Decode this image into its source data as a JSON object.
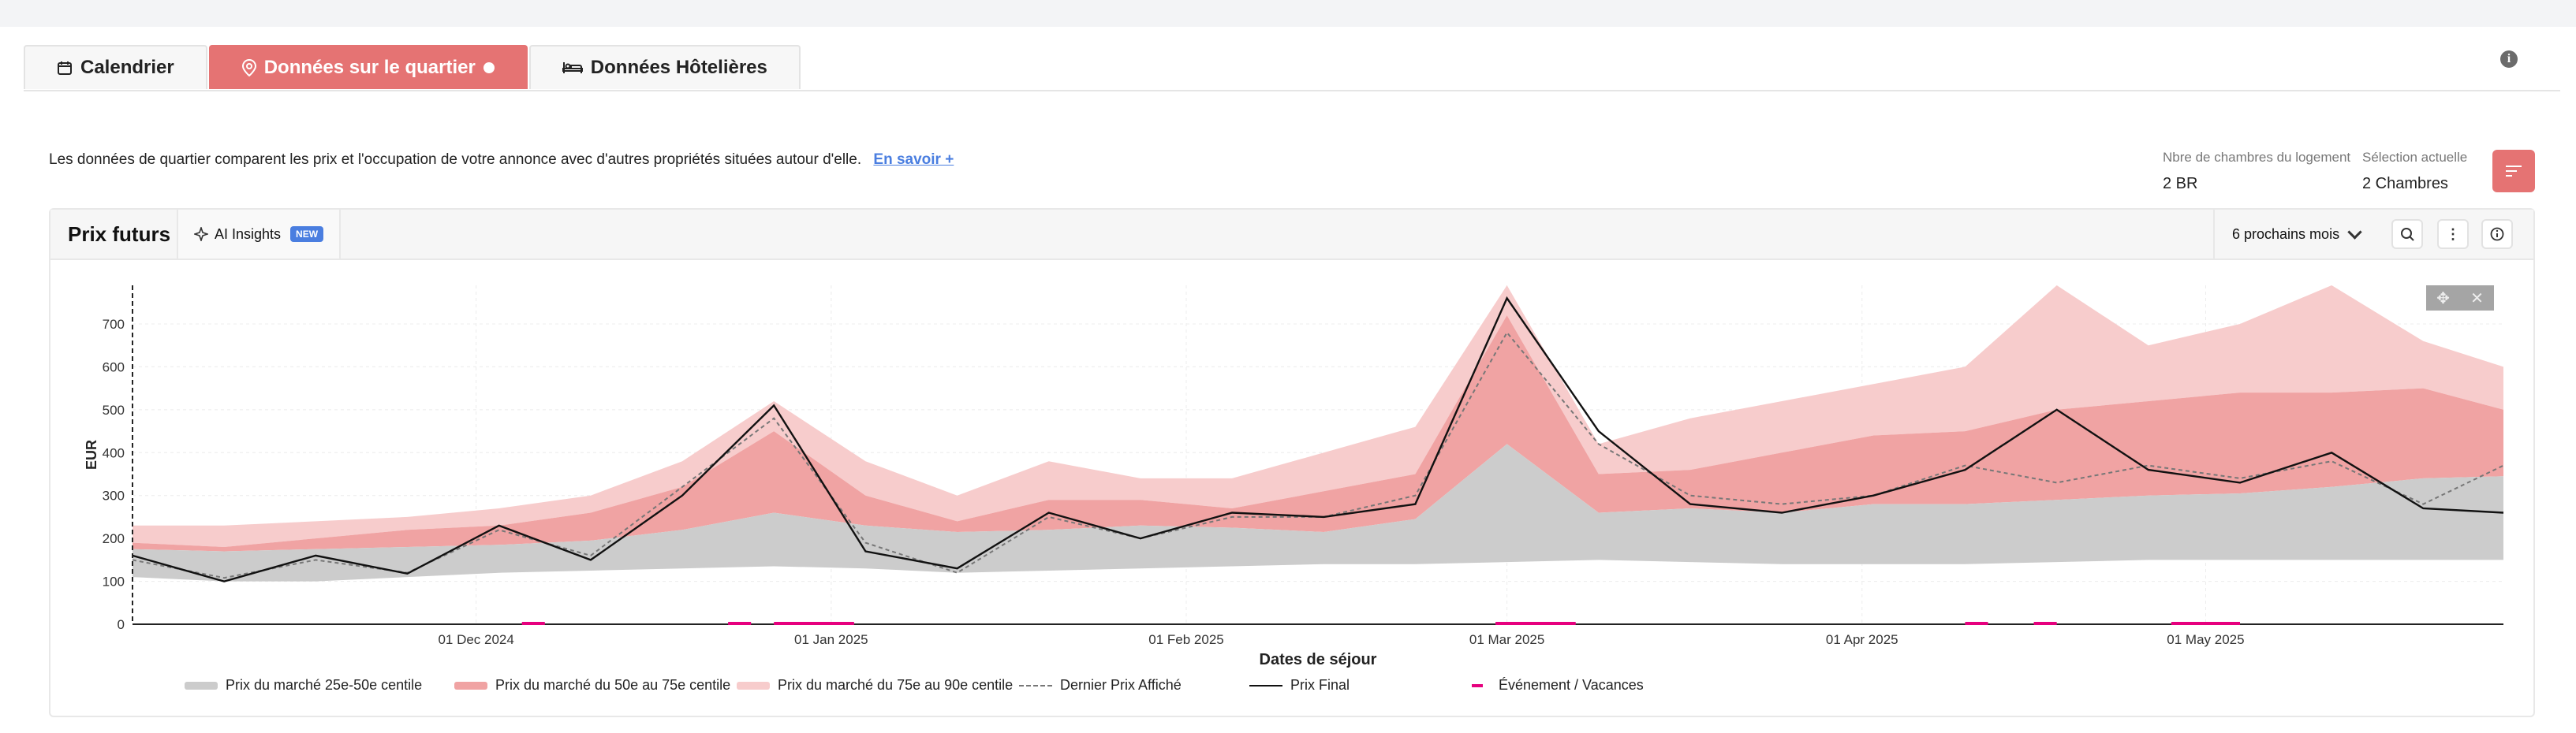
{
  "tabs": [
    {
      "label": "Calendrier",
      "icon": "calendar-icon"
    },
    {
      "label": "Données sur le quartier",
      "icon": "location-pin-icon"
    },
    {
      "label": "Données Hôtelières",
      "icon": "bed-icon"
    }
  ],
  "description": "Les données de quartier comparent les prix et l'occupation de votre annonce avec d'autres propriétés situées autour d'elle.",
  "learn_more": "En savoir +",
  "room_count": {
    "label": "Nbre de chambres du logement",
    "value": "2 BR"
  },
  "selection": {
    "label": "Sélection actuelle",
    "value": "2 Chambres"
  },
  "card": {
    "title": "Prix futurs",
    "ai_label": "AI Insights",
    "ai_badge": "NEW",
    "period": "6 prochains mois"
  },
  "colors": {
    "accent": "#e57373",
    "p25_50": "#cccccc",
    "p50_75": "#f0a3a3",
    "p75_90": "#f7cccc",
    "event": "#e6007e"
  },
  "chart_data": {
    "type": "area",
    "xlabel": "Dates de séjour",
    "ylabel": "EUR",
    "ylim": [
      0,
      790
    ],
    "yticks": [
      "0",
      "100",
      "200",
      "300",
      "400",
      "500",
      "600",
      "700"
    ],
    "x_start": "2024-11-01",
    "x_end": "2025-05-27",
    "xtick_labels": [
      {
        "date": "2024-12-01",
        "label": "01 Dec 2024"
      },
      {
        "date": "2025-01-01",
        "label": "01 Jan 2025"
      },
      {
        "date": "2025-02-01",
        "label": "01 Feb 2025"
      },
      {
        "date": "2025-03-01",
        "label": "01 Mar 2025"
      },
      {
        "date": "2025-04-01",
        "label": "01 Apr 2025"
      },
      {
        "date": "2025-05-01",
        "label": "01 May 2025"
      }
    ],
    "dates": [
      "2024-11-01",
      "2024-11-09",
      "2024-11-17",
      "2024-11-25",
      "2024-12-03",
      "2024-12-11",
      "2024-12-19",
      "2024-12-27",
      "2025-01-04",
      "2025-01-12",
      "2025-01-20",
      "2025-01-28",
      "2025-02-05",
      "2025-02-13",
      "2025-02-21",
      "2025-03-01",
      "2025-03-09",
      "2025-03-17",
      "2025-03-25",
      "2025-04-02",
      "2025-04-10",
      "2025-04-18",
      "2025-04-26",
      "2025-05-04",
      "2025-05-12",
      "2025-05-20",
      "2025-05-27"
    ],
    "series": [
      {
        "name": "Prix du marché 25e-50e centile",
        "low": [
          110,
          100,
          100,
          110,
          120,
          125,
          130,
          135,
          130,
          120,
          125,
          130,
          135,
          140,
          140,
          145,
          150,
          145,
          140,
          140,
          140,
          145,
          150,
          150,
          150,
          150,
          150
        ],
        "high": [
          175,
          170,
          175,
          180,
          185,
          195,
          220,
          260,
          230,
          215,
          220,
          230,
          225,
          215,
          245,
          420,
          260,
          270,
          260,
          280,
          280,
          290,
          300,
          305,
          320,
          340,
          345
        ]
      },
      {
        "name": "Prix du marché du 50e au 75e centile",
        "low": [
          175,
          170,
          175,
          180,
          185,
          195,
          220,
          260,
          230,
          215,
          220,
          230,
          225,
          215,
          245,
          420,
          260,
          270,
          260,
          280,
          280,
          290,
          300,
          305,
          320,
          340,
          345
        ],
        "high": [
          190,
          180,
          200,
          220,
          230,
          260,
          320,
          450,
          300,
          240,
          290,
          290,
          270,
          310,
          350,
          720,
          350,
          360,
          400,
          440,
          450,
          500,
          520,
          540,
          540,
          550,
          500
        ]
      },
      {
        "name": "Prix du marché du 75e au 90e centile",
        "low": [
          190,
          180,
          200,
          220,
          230,
          260,
          320,
          450,
          300,
          240,
          290,
          290,
          270,
          310,
          350,
          720,
          350,
          360,
          400,
          440,
          450,
          500,
          520,
          540,
          540,
          550,
          500
        ],
        "high": [
          230,
          230,
          240,
          250,
          270,
          300,
          380,
          520,
          380,
          300,
          380,
          340,
          340,
          400,
          460,
          790,
          420,
          480,
          520,
          560,
          600,
          790,
          650,
          700,
          790,
          660,
          600
        ]
      },
      {
        "name": "Dernier Prix Affiché",
        "values": [
          150,
          108,
          150,
          120,
          220,
          160,
          320,
          480,
          190,
          120,
          250,
          200,
          250,
          250,
          300,
          680,
          420,
          300,
          280,
          300,
          370,
          330,
          370,
          340,
          380,
          280,
          370
        ]
      },
      {
        "name": "Prix Final",
        "values": [
          160,
          100,
          160,
          118,
          230,
          150,
          300,
          510,
          170,
          130,
          260,
          200,
          260,
          250,
          280,
          760,
          450,
          280,
          260,
          300,
          360,
          500,
          360,
          330,
          400,
          270,
          260
        ]
      }
    ],
    "legend": [
      {
        "label": "Prix du marché 25e-50e centile",
        "color": "#cccccc",
        "style": "area"
      },
      {
        "label": "Prix du marché du 50e au 75e centile",
        "color": "#f0a3a3",
        "style": "area"
      },
      {
        "label": "Prix du marché du 75e au 90e centile",
        "color": "#f7cccc",
        "style": "area"
      },
      {
        "label": "Dernier Prix Affiché",
        "color": "#777777",
        "style": "dashed"
      },
      {
        "label": "Prix Final",
        "color": "#111111",
        "style": "line"
      },
      {
        "label": "Événement / Vacances",
        "color": "#e6007e",
        "style": "marker"
      }
    ],
    "events": [
      {
        "start": "2024-12-05",
        "end": "2024-12-07"
      },
      {
        "start": "2024-12-23",
        "end": "2024-12-25"
      },
      {
        "start": "2024-12-27",
        "end": "2025-01-03"
      },
      {
        "start": "2025-02-28",
        "end": "2025-03-07"
      },
      {
        "start": "2025-04-10",
        "end": "2025-04-12"
      },
      {
        "start": "2025-04-16",
        "end": "2025-04-18"
      },
      {
        "start": "2025-04-28",
        "end": "2025-05-04"
      }
    ]
  }
}
